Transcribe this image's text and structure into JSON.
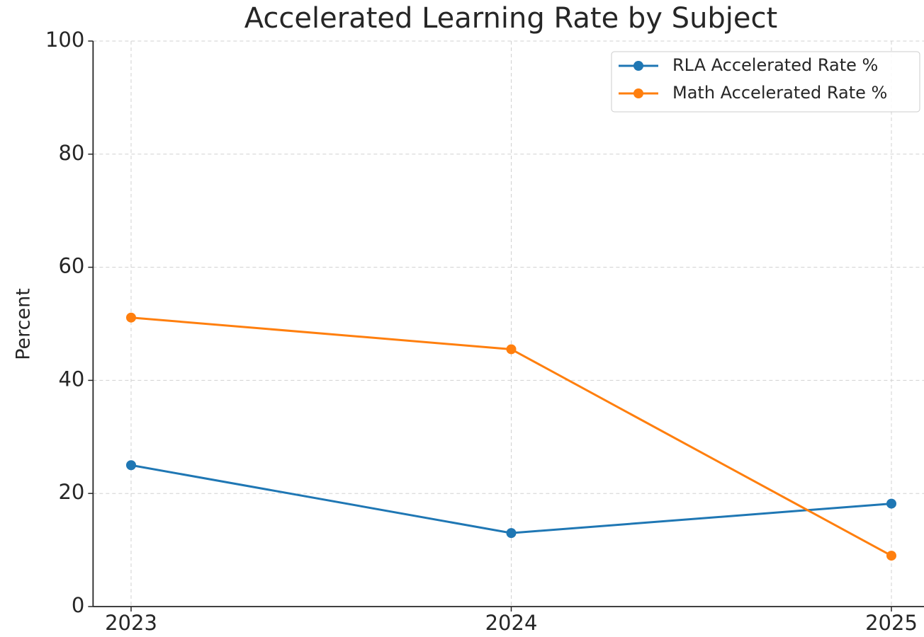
{
  "chart_data": {
    "type": "line",
    "title": "Accelerated Learning Rate by Subject",
    "y_label": "Percent",
    "x": [
      2023,
      2024,
      2025
    ],
    "series": [
      {
        "name": "RLA Accelerated Rate %",
        "color": "#1f77b4",
        "values": [
          25,
          13,
          18.2
        ]
      },
      {
        "name": "Math Accelerated Rate %",
        "color": "#ff7f0e",
        "values": [
          51.1,
          45.5,
          9
        ]
      }
    ],
    "xlim": [
      2022.9,
      2025.1
    ],
    "xticks": [
      2023,
      2024,
      2025
    ],
    "ylim": [
      0,
      100
    ],
    "yticks": [
      0,
      20,
      40,
      60,
      80,
      100
    ],
    "grid": true,
    "legend": "upper right"
  }
}
